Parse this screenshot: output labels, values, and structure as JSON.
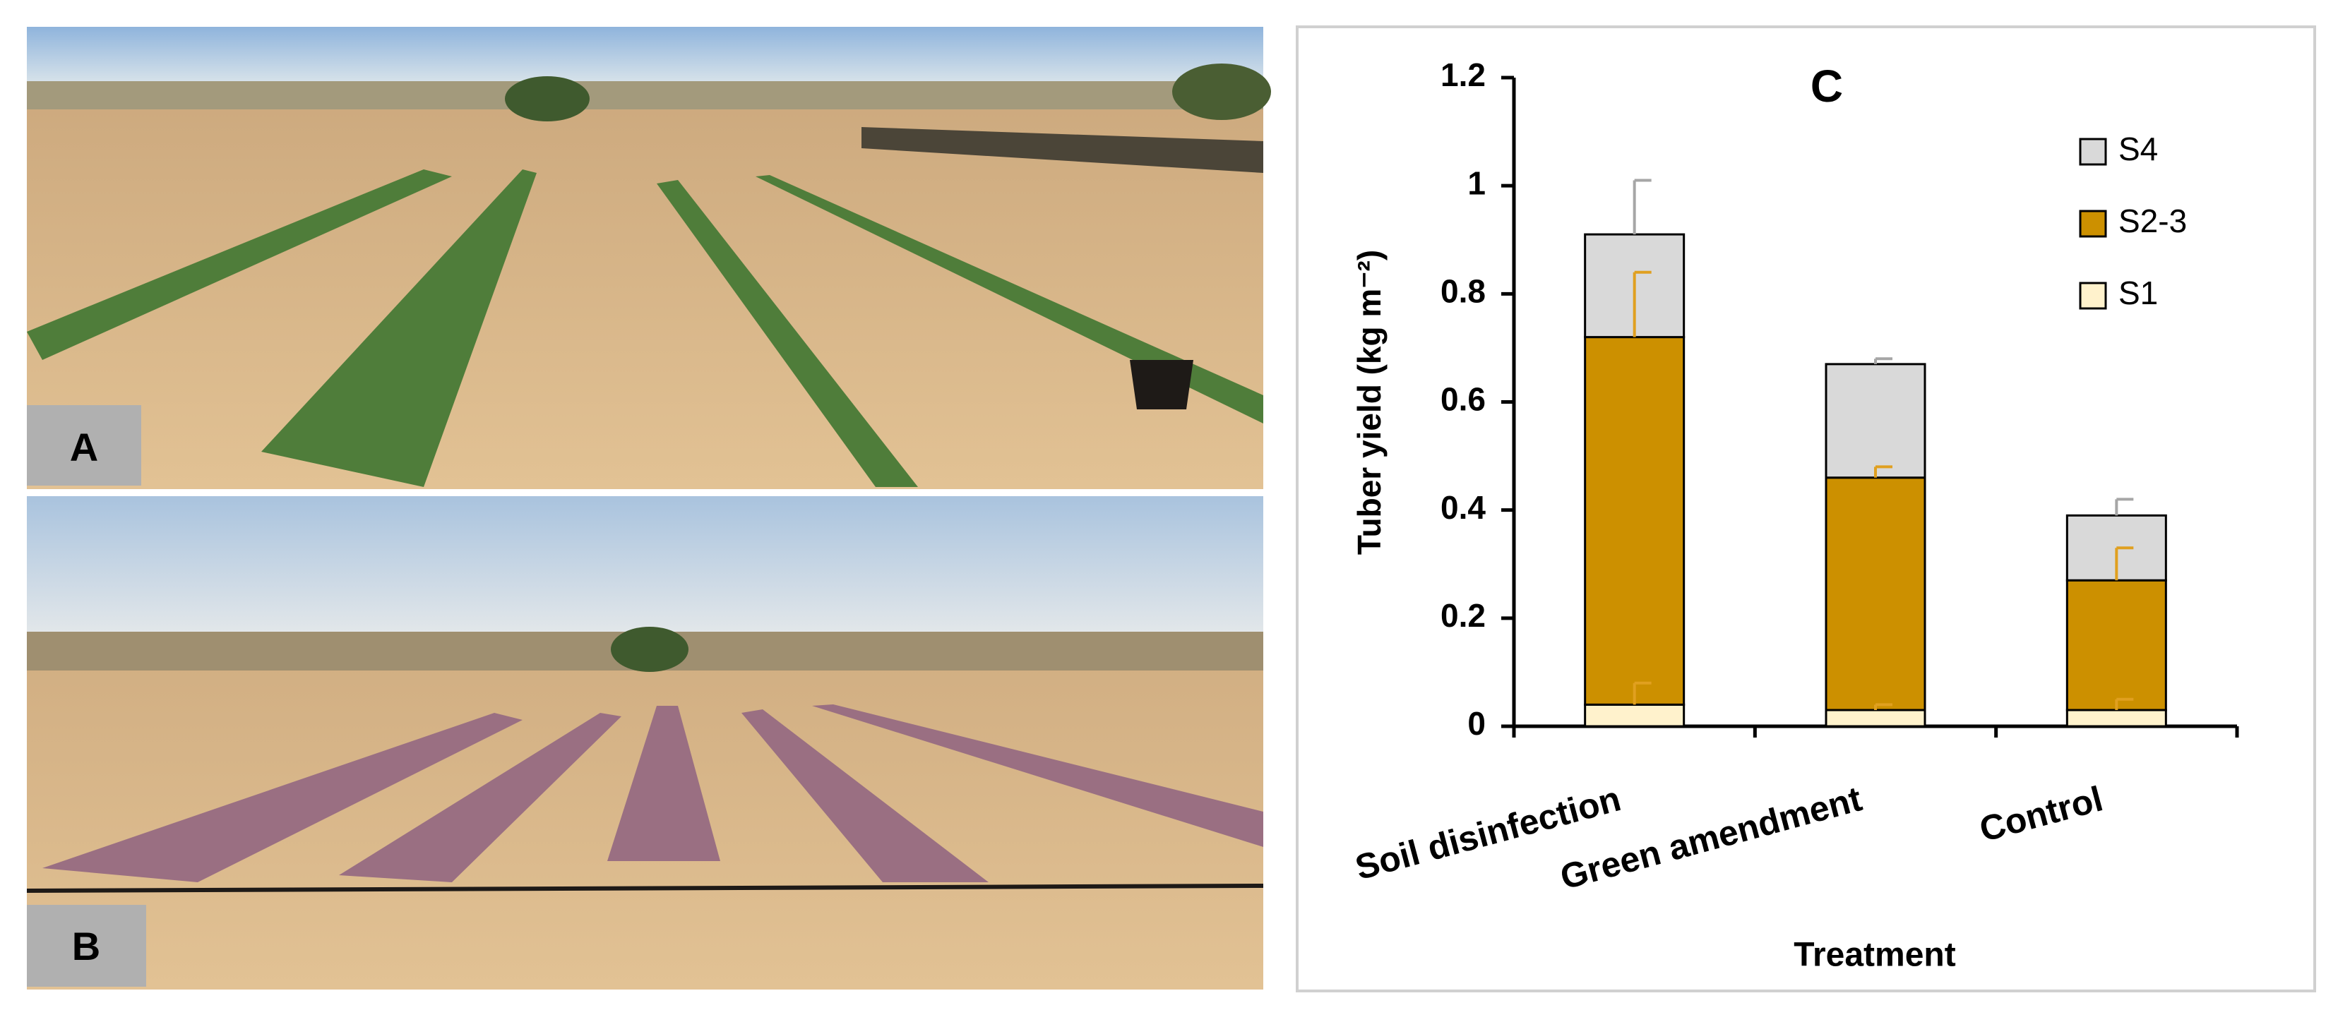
{
  "photos": {
    "top_label": "A",
    "bottom_label": "B"
  },
  "chart_data": {
    "type": "stacked_bar",
    "title": "C",
    "ylabel": "Tuber yield (kg m⁻²)",
    "xlabel": "Treatment",
    "categories": [
      "Soil disinfection",
      "Green amendment",
      "Control"
    ],
    "series": [
      {
        "name": "S1",
        "color": "#fff2cc",
        "error_color": "#e0a020",
        "values": [
          0.04,
          0.03,
          0.03
        ],
        "errors": [
          0.04,
          0.01,
          0.02
        ]
      },
      {
        "name": "S2-3",
        "color": "#cc9000",
        "error_color": "#e0a020",
        "values": [
          0.68,
          0.43,
          0.24
        ],
        "errors": [
          0.12,
          0.02,
          0.06
        ]
      },
      {
        "name": "S4",
        "color": "#d9d9d9",
        "error_color": "#a6a6a6",
        "values": [
          0.19,
          0.21,
          0.12
        ],
        "errors": [
          0.1,
          0.01,
          0.03
        ]
      }
    ],
    "ylim": [
      0,
      1.2
    ],
    "yticks": [
      0,
      0.2,
      0.4,
      0.6,
      0.8,
      1,
      1.2
    ],
    "legend": "upper-right"
  }
}
